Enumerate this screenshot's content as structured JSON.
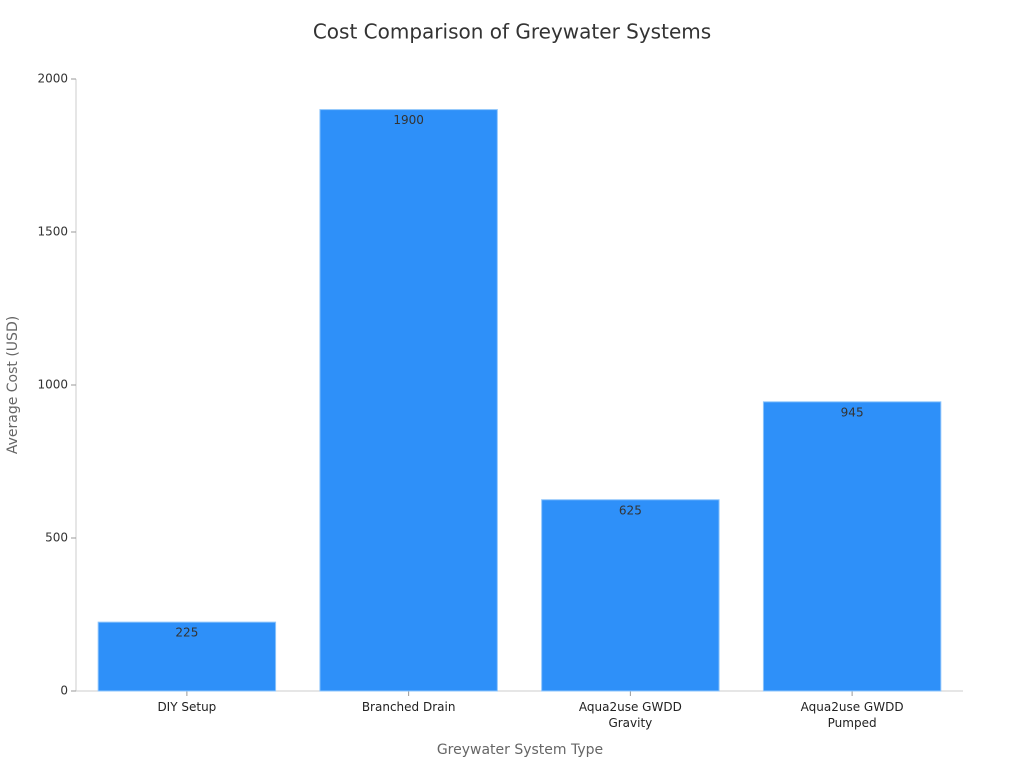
{
  "chart_data": {
    "type": "bar",
    "title": "Cost Comparison of Greywater Systems",
    "x_label": "Greywater System Type",
    "y_label": "Average Cost (USD)",
    "categories": [
      "DIY Setup",
      "Branched Drain",
      "Aqua2use GWDD Gravity",
      "Aqua2use GWDD Pumped"
    ],
    "values": [
      225,
      1900,
      625,
      945
    ],
    "color": "#2e90f9",
    "ylim": [
      0,
      2000
    ],
    "yticks": [
      0,
      500,
      1000,
      1500,
      2000
    ],
    "grid": false
  }
}
